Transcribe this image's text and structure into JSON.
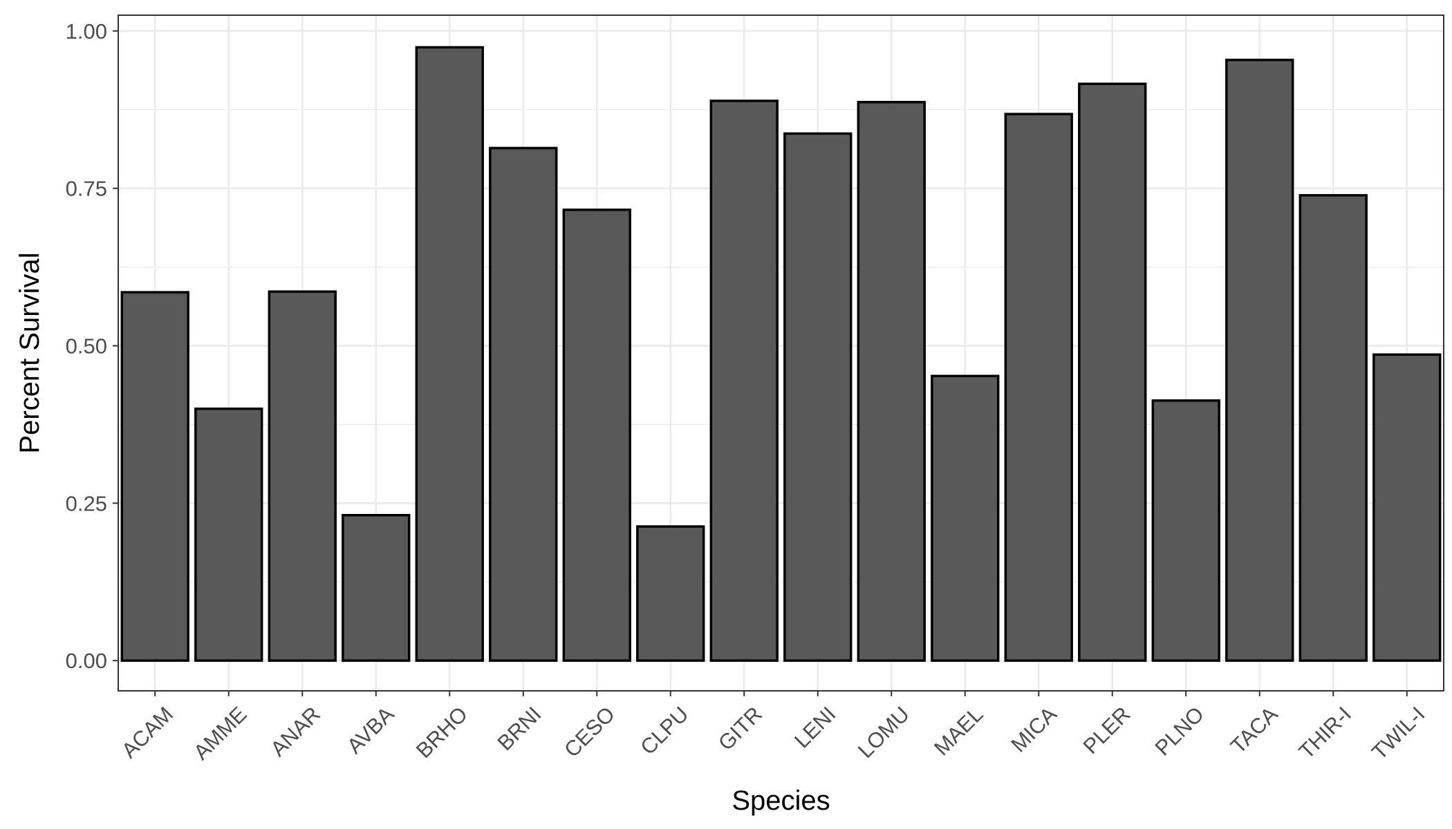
{
  "chart_data": {
    "type": "bar",
    "xlabel": "Species",
    "ylabel": "Percent Survival",
    "categories": [
      "ACAM",
      "AMME",
      "ANAR",
      "AVBA",
      "BRHO",
      "BRNI",
      "CESO",
      "CLPU",
      "GITR",
      "LENI",
      "LOMU",
      "MAEL",
      "MICA",
      "PLER",
      "PLNO",
      "TACA",
      "THIR-I",
      "TWIL-I"
    ],
    "values": [
      0.585,
      0.4,
      0.586,
      0.231,
      0.974,
      0.814,
      0.716,
      0.213,
      0.889,
      0.837,
      0.887,
      0.452,
      0.868,
      0.916,
      0.413,
      0.954,
      0.739,
      0.486
    ],
    "ylim": [
      -0.048,
      1.025
    ],
    "yticks": [
      0,
      0.25,
      0.5,
      0.75,
      1.0
    ],
    "ytick_labels": [
      "0.00",
      "0.25",
      "0.50",
      "0.75",
      "1.00"
    ],
    "grid": true,
    "colors": {
      "bar_fill": "#595959",
      "bar_stroke": "#000000",
      "grid": "#ebebeb",
      "panel_border": "#333333"
    }
  }
}
